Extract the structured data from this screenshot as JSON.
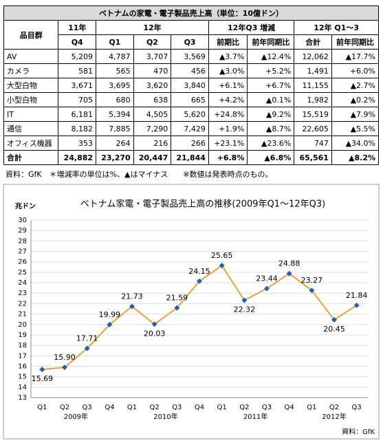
{
  "table": {
    "title": "ベトナムの家電・電子製品売上高（単位：10億ドン）",
    "header": [
      [
        "品目群",
        "11年",
        "12年",
        "12年Q3 増減",
        "12年 Q1～3"
      ],
      [
        "Q4",
        "Q1",
        "Q2",
        "Q3",
        "前期比",
        "前年同期比",
        "合計",
        "前年同期比"
      ]
    ],
    "rows": [
      [
        "AV",
        "5,209",
        "4,787",
        "3,707",
        "3,569",
        "▲3.7%",
        "▲12.4%",
        "12,062",
        "▲17.7%"
      ],
      [
        "カメラ",
        "581",
        "565",
        "470",
        "456",
        "▲3.0%",
        "+5.2%",
        "1,491",
        "+6.0%"
      ],
      [
        "大型白物",
        "3,671",
        "3,695",
        "3,620",
        "3,840",
        "+6.1%",
        "+6.7%",
        "11,155",
        "▲2.7%"
      ],
      [
        "小型白物",
        "705",
        "680",
        "638",
        "665",
        "+4.2%",
        "▲0.1%",
        "1,982",
        "▲0.2%"
      ],
      [
        "IT",
        "6,181",
        "5,394",
        "4,505",
        "5,620",
        "+24.8%",
        "▲9.2%",
        "15,519",
        "▲7.9%"
      ],
      [
        "通信",
        "8,182",
        "7,885",
        "7,290",
        "7,429",
        "+1.9%",
        "▲8.7%",
        "22,605",
        "▲5.5%"
      ],
      [
        "オフィス機器",
        "353",
        "264",
        "216",
        "266",
        "+23.1%",
        "▲23.6%",
        "747",
        "▲34.0%"
      ],
      [
        "合計",
        "24,882",
        "23,270",
        "20,447",
        "21,844",
        "+6.8%",
        "▲6.8%",
        "65,561",
        "▲8.2%"
      ]
    ],
    "note": "資料：GfK　＊増減率の単位は%、▲はマイナス　　※数値は発表時点のもの。"
  },
  "chart_data": {
    "type": "line",
    "title": "ベトナム家電・電子製品売上高の推移(2009年Q1～12年Q3)",
    "y_label": "兆ドン",
    "source": "資料：GfK",
    "categories": [
      "Q1",
      "Q2",
      "Q3",
      "Q4",
      "Q1",
      "Q2",
      "Q3",
      "Q4",
      "Q1",
      "Q2",
      "Q3",
      "Q4",
      "Q1",
      "Q2",
      "Q3"
    ],
    "years": [
      "2009年",
      "2010年",
      "2011年",
      "2012年"
    ],
    "values": [
      15.69,
      15.9,
      17.71,
      19.99,
      21.73,
      20.03,
      21.59,
      24.15,
      25.65,
      22.32,
      23.44,
      24.88,
      23.27,
      20.45,
      21.84
    ],
    "value_labels": [
      "15.69",
      "15.90",
      "17.71",
      "19.99",
      "21.73",
      "20.03",
      "21.59",
      "24.15",
      "25.65",
      "22.32",
      "23.44",
      "24.88",
      "23.27",
      "20.45",
      "21.84"
    ],
    "color": "#f0a030",
    "marker_color": "#1f5fbf",
    "ylim": [
      13,
      30
    ],
    "yticks": [
      13,
      14,
      15,
      16,
      17,
      18,
      19,
      20,
      21,
      22,
      23,
      24,
      25,
      26,
      27,
      28,
      29,
      30
    ],
    "grid": true
  }
}
